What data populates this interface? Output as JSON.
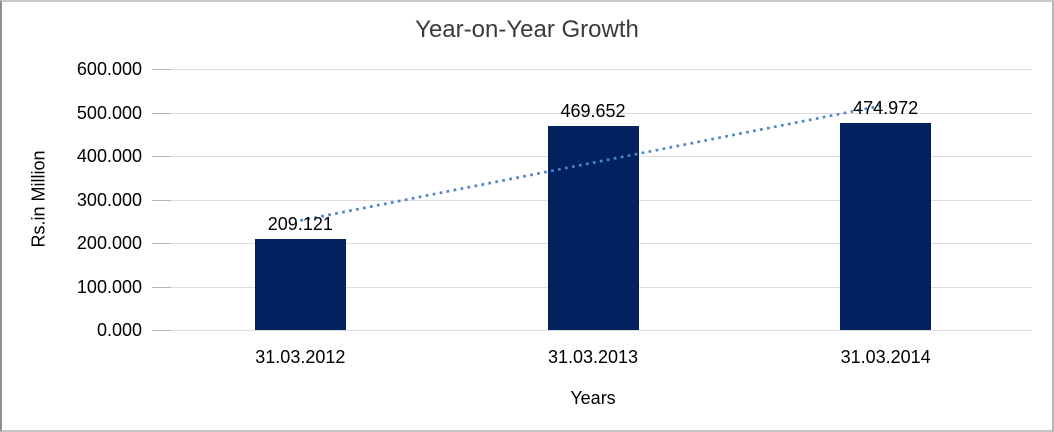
{
  "chart": {
    "title": "Year-on-Year Growth",
    "y_axis": {
      "title": "Rs.in Million",
      "tick_labels": [
        "600.000",
        "500.000",
        "400.000",
        "300.000",
        "200.000",
        "100.000",
        "0.000"
      ]
    },
    "x_axis": {
      "title": "Years",
      "tick_labels": [
        "31.03.2012",
        "31.03.2013",
        "31.03.2014"
      ]
    },
    "colors": {
      "bar": "#02215f",
      "trendline": "#4d86c9",
      "gridline": "#dcdcdc",
      "tick": "#b3b3b3",
      "text": "#000000",
      "title_text": "#3b3b3b",
      "frame_border": "#b5b5b5"
    }
  },
  "chart_data": {
    "type": "bar",
    "title": "Year-on-Year Growth",
    "xlabel": "Years",
    "ylabel": "Rs.in Million",
    "categories": [
      "31.03.2012",
      "31.03.2013",
      "31.03.2014"
    ],
    "values": [
      209.121,
      469.652,
      474.972
    ],
    "data_labels": [
      "209.121",
      "469.652",
      "474.972"
    ],
    "ylim": [
      0,
      600
    ],
    "y_tick_step": 100,
    "grid": true,
    "legend": false,
    "bar_color": "#02215f",
    "trendline": {
      "type": "linear",
      "style": "dotted",
      "color": "#4d86c9",
      "endpoints_values": [
        251.656,
        517.507
      ]
    }
  }
}
